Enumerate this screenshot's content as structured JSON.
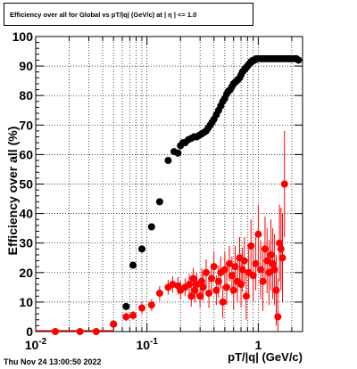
{
  "title": "Efficiency over all for Global vs pT/|q| (GeV/c) at | η | <= 1.0",
  "timestamp": "Thu Nov 24 13:00:50 2022",
  "chart_data": {
    "type": "scatter",
    "title": "Efficiency over all for Global vs pT/|q| (GeV/c) at | η | <= 1.0",
    "xlabel": "pT/|q| (GeV/c)",
    "ylabel": "Efficiency over all (%)",
    "xscale": "log",
    "xlim": [
      0.01,
      2.5
    ],
    "ylim": [
      0,
      100
    ],
    "grid": true,
    "x_ticks": [
      {
        "value": 0.01,
        "label": "10",
        "sup": "-2"
      },
      {
        "value": 0.1,
        "label": "10",
        "sup": "-1"
      },
      {
        "value": 1,
        "label": "1",
        "sup": ""
      }
    ],
    "y_ticks": [
      {
        "value": 0,
        "label": "0"
      },
      {
        "value": 10,
        "label": "10"
      },
      {
        "value": 20,
        "label": "20"
      },
      {
        "value": 30,
        "label": "30"
      },
      {
        "value": 40,
        "label": "40"
      },
      {
        "value": 50,
        "label": "50"
      },
      {
        "value": 60,
        "label": "60"
      },
      {
        "value": 70,
        "label": "70"
      },
      {
        "value": 80,
        "label": "80"
      },
      {
        "value": 90,
        "label": "90"
      },
      {
        "value": 100,
        "label": "100"
      }
    ],
    "series": [
      {
        "color": "#000000",
        "x": [
          0.05,
          0.065,
          0.075,
          0.09,
          0.11,
          0.13,
          0.155,
          0.175,
          0.19,
          0.2,
          0.21,
          0.22,
          0.235,
          0.25,
          0.265,
          0.28,
          0.295,
          0.31,
          0.325,
          0.34,
          0.355,
          0.37,
          0.385,
          0.4,
          0.42,
          0.44,
          0.46,
          0.48,
          0.5,
          0.52,
          0.54,
          0.56,
          0.58,
          0.6,
          0.62,
          0.64,
          0.66,
          0.68,
          0.7,
          0.72,
          0.74,
          0.76,
          0.78,
          0.8,
          0.82,
          0.84,
          0.86,
          0.88,
          0.9,
          0.93,
          0.96,
          0.99,
          1.02,
          1.06,
          1.1,
          1.14,
          1.18,
          1.22,
          1.27,
          1.32,
          1.37,
          1.42,
          1.48,
          1.54,
          1.6,
          1.67,
          1.74,
          1.81,
          1.88,
          1.95,
          2.02,
          2.1,
          2.2,
          2.3
        ],
        "y": [
          2.5,
          8.5,
          22.5,
          28,
          35.5,
          44,
          58,
          61,
          60.5,
          63,
          64,
          64,
          65,
          65.5,
          66,
          66,
          66.5,
          67,
          67.5,
          68,
          69,
          70,
          71,
          72,
          73.5,
          75,
          76.5,
          78,
          79,
          80.5,
          81.5,
          82,
          83,
          84,
          84.5,
          85,
          85.5,
          86,
          87,
          88,
          88.5,
          89,
          89.5,
          90,
          90.5,
          91,
          91.5,
          91.5,
          92,
          92,
          92.5,
          92.5,
          92.5,
          92.5,
          92.5,
          92.5,
          92.5,
          92.5,
          92.5,
          92.5,
          92.5,
          92.5,
          92.5,
          92.5,
          92.5,
          92.5,
          92.5,
          92.5,
          92.5,
          92.5,
          92.5,
          92.5,
          92.5,
          92
        ],
        "yerr": [
          0.4,
          0.6,
          0.7,
          0.8,
          0.8,
          0.8,
          0.8,
          0.8,
          0.8,
          0.8,
          0.8,
          0.8,
          0.8,
          0.8,
          0.8,
          0.8,
          0.8,
          0.8,
          0.8,
          0.8,
          0.8,
          0.8,
          0.8,
          0.8,
          0.8,
          0.8,
          0.8,
          0.8,
          0.8,
          0.8,
          0.8,
          0.8,
          0.8,
          0.8,
          0.8,
          0.8,
          0.8,
          0.8,
          0.8,
          0.8,
          0.8,
          0.8,
          0.8,
          0.8,
          0.8,
          0.8,
          0.8,
          0.8,
          0.8,
          0.8,
          0.8,
          0.8,
          0.8,
          0.8,
          0.8,
          0.8,
          0.8,
          0.8,
          0.8,
          0.8,
          0.8,
          0.8,
          0.8,
          0.8,
          0.8,
          0.8,
          0.8,
          0.8,
          0.8,
          0.8,
          0.8,
          0.8,
          0.8,
          0.8
        ]
      },
      {
        "color": "#ff0000",
        "x": [
          0.015,
          0.025,
          0.035,
          0.05,
          0.065,
          0.075,
          0.09,
          0.11,
          0.13,
          0.155,
          0.17,
          0.19,
          0.2,
          0.22,
          0.24,
          0.25,
          0.26,
          0.27,
          0.28,
          0.3,
          0.31,
          0.32,
          0.34,
          0.36,
          0.38,
          0.4,
          0.42,
          0.44,
          0.46,
          0.48,
          0.5,
          0.52,
          0.55,
          0.58,
          0.6,
          0.62,
          0.65,
          0.68,
          0.7,
          0.72,
          0.75,
          0.78,
          0.82,
          0.86,
          0.9,
          0.95,
          1.0,
          1.05,
          1.1,
          1.15,
          1.2,
          1.25,
          1.3,
          1.35,
          1.4,
          1.45,
          1.5,
          1.55,
          1.6,
          1.65,
          1.72
        ],
        "y": [
          0,
          0,
          0,
          2.5,
          5,
          5.5,
          8,
          9,
          13,
          15,
          16,
          15.5,
          14,
          15,
          16,
          12,
          18,
          14,
          16,
          12,
          17,
          15,
          20,
          13,
          18,
          22,
          14,
          17,
          20,
          10,
          21,
          15,
          23,
          19,
          14,
          22,
          17,
          25,
          16,
          21,
          24,
          12,
          20,
          29,
          19,
          23,
          33,
          21,
          17,
          28,
          24,
          20,
          26,
          23,
          21,
          14,
          5,
          30,
          28,
          25,
          50
        ],
        "yerr": [
          0.5,
          0.5,
          0.5,
          1.2,
          1.5,
          1.5,
          2,
          2,
          2.5,
          2.5,
          2.8,
          3,
          3,
          3,
          3.5,
          3.5,
          3.5,
          4,
          4,
          4,
          4.5,
          4.5,
          4.5,
          5,
          5,
          5,
          5,
          5.5,
          5.5,
          5.5,
          6,
          6,
          6,
          6.5,
          6.5,
          7,
          7,
          7,
          7.5,
          7.5,
          8,
          8,
          8,
          9,
          9,
          9,
          10,
          10,
          10,
          11,
          11,
          11,
          12,
          12,
          12,
          12,
          13,
          13,
          14,
          15,
          18
        ]
      }
    ]
  }
}
